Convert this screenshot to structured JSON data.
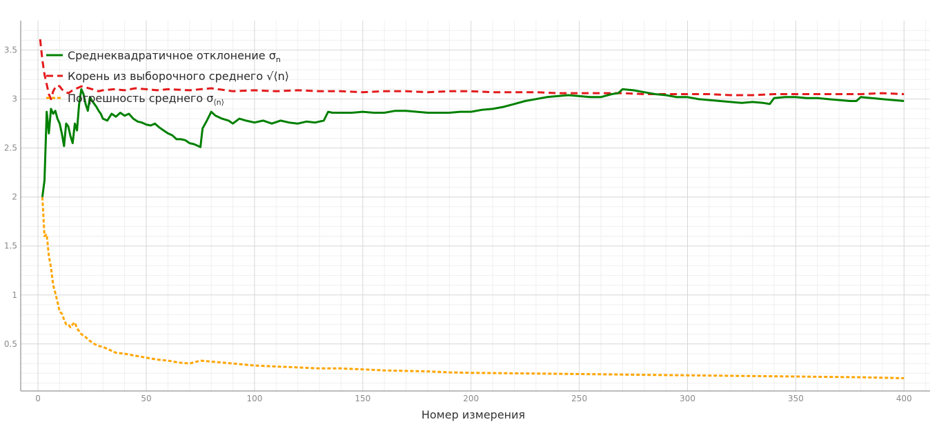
{
  "chart_data": {
    "type": "line",
    "title": "",
    "xlabel": "Номер измерения",
    "ylabel": "",
    "xlim": [
      -8,
      412
    ],
    "ylim": [
      0.02,
      3.8
    ],
    "x_ticks": [
      0,
      50,
      100,
      150,
      200,
      250,
      300,
      350,
      400
    ],
    "x_tick_labels": [
      "0",
      "50",
      "100",
      "150",
      "200",
      "250",
      "300",
      "350",
      "400"
    ],
    "y_ticks": [
      0.5,
      1,
      1.5,
      2,
      2.5,
      3,
      3.5
    ],
    "y_tick_labels": [
      "0.5",
      "1",
      "1.5",
      "2",
      "2.5",
      "3",
      "3.5"
    ],
    "grid": true,
    "legend_position": "top-left",
    "series": [
      {
        "name": "Среднеквадратичное отклонение σ",
        "name_sub": "n",
        "color": "#008000",
        "dash": "solid",
        "x": [
          2,
          3,
          4,
          5,
          6,
          7,
          8,
          9,
          10,
          11,
          12,
          13,
          14,
          15,
          16,
          17,
          18,
          19,
          20,
          21,
          22,
          23,
          24,
          25,
          26,
          27,
          28,
          29,
          30,
          32,
          34,
          36,
          38,
          40,
          42,
          44,
          46,
          48,
          50,
          52,
          54,
          56,
          58,
          60,
          62,
          64,
          66,
          68,
          70,
          72,
          74,
          75,
          76,
          78,
          80,
          82,
          85,
          88,
          90,
          93,
          96,
          100,
          104,
          108,
          112,
          116,
          120,
          124,
          128,
          132,
          134,
          136,
          140,
          145,
          150,
          155,
          160,
          165,
          170,
          175,
          180,
          185,
          190,
          195,
          200,
          205,
          210,
          215,
          220,
          225,
          230,
          235,
          240,
          245,
          250,
          255,
          260,
          265,
          268,
          270,
          275,
          280,
          285,
          290,
          295,
          300,
          305,
          310,
          315,
          320,
          325,
          330,
          335,
          338,
          340,
          345,
          350,
          355,
          360,
          365,
          370,
          375,
          378,
          380,
          385,
          390,
          395,
          400
        ],
        "y": [
          2.0,
          2.17,
          2.87,
          2.65,
          2.9,
          2.85,
          2.88,
          2.8,
          2.75,
          2.65,
          2.52,
          2.75,
          2.72,
          2.62,
          2.55,
          2.75,
          2.68,
          2.95,
          3.1,
          3.05,
          2.95,
          2.88,
          3.02,
          2.98,
          2.95,
          2.92,
          2.88,
          2.85,
          2.8,
          2.78,
          2.85,
          2.82,
          2.86,
          2.83,
          2.85,
          2.8,
          2.77,
          2.76,
          2.74,
          2.73,
          2.75,
          2.71,
          2.68,
          2.65,
          2.63,
          2.59,
          2.59,
          2.58,
          2.55,
          2.54,
          2.52,
          2.51,
          2.7,
          2.78,
          2.87,
          2.83,
          2.8,
          2.78,
          2.75,
          2.8,
          2.78,
          2.76,
          2.78,
          2.75,
          2.78,
          2.76,
          2.75,
          2.77,
          2.76,
          2.78,
          2.87,
          2.86,
          2.86,
          2.86,
          2.87,
          2.86,
          2.86,
          2.88,
          2.88,
          2.87,
          2.86,
          2.86,
          2.86,
          2.87,
          2.87,
          2.89,
          2.9,
          2.92,
          2.95,
          2.98,
          3.0,
          3.02,
          3.03,
          3.04,
          3.03,
          3.02,
          3.02,
          3.05,
          3.06,
          3.1,
          3.09,
          3.07,
          3.05,
          3.04,
          3.02,
          3.02,
          3.0,
          2.99,
          2.98,
          2.97,
          2.96,
          2.97,
          2.96,
          2.95,
          3.01,
          3.02,
          3.02,
          3.01,
          3.01,
          3.0,
          2.99,
          2.98,
          2.98,
          3.02,
          3.01,
          3.0,
          2.99,
          2.98
        ]
      },
      {
        "name": "Корень из выборочного среднего √⟨n⟩",
        "name_sub": "",
        "color": "#e31a1c",
        "dash": "10,6",
        "x": [
          1,
          2,
          3,
          4,
          5,
          6,
          7,
          8,
          9,
          10,
          11,
          12,
          14,
          16,
          18,
          20,
          22,
          25,
          28,
          30,
          35,
          40,
          45,
          50,
          55,
          60,
          70,
          80,
          90,
          100,
          110,
          120,
          130,
          140,
          150,
          160,
          170,
          180,
          190,
          200,
          210,
          220,
          230,
          240,
          250,
          260,
          270,
          280,
          290,
          300,
          310,
          320,
          330,
          340,
          350,
          360,
          370,
          380,
          390,
          400
        ],
        "y": [
          3.61,
          3.4,
          3.25,
          3.15,
          3.05,
          3.0,
          3.08,
          3.12,
          3.14,
          3.13,
          3.1,
          3.08,
          3.06,
          3.09,
          3.11,
          3.13,
          3.12,
          3.1,
          3.08,
          3.09,
          3.1,
          3.09,
          3.11,
          3.1,
          3.09,
          3.1,
          3.09,
          3.11,
          3.08,
          3.09,
          3.08,
          3.09,
          3.08,
          3.08,
          3.07,
          3.08,
          3.08,
          3.07,
          3.08,
          3.08,
          3.07,
          3.07,
          3.07,
          3.06,
          3.06,
          3.06,
          3.06,
          3.05,
          3.05,
          3.05,
          3.05,
          3.04,
          3.04,
          3.05,
          3.05,
          3.05,
          3.05,
          3.05,
          3.06,
          3.05
        ]
      },
      {
        "name": "Погрешность среднего σ",
        "name_sub": "⟨n⟩",
        "color": "#ffa500",
        "dash": "5,3",
        "x": [
          2,
          3,
          4,
          5,
          6,
          7,
          8,
          9,
          10,
          11,
          12,
          13,
          14,
          15,
          16,
          17,
          18,
          19,
          20,
          22,
          24,
          26,
          28,
          30,
          32,
          34,
          36,
          40,
          45,
          50,
          55,
          60,
          65,
          70,
          75,
          80,
          85,
          90,
          95,
          100,
          110,
          120,
          130,
          140,
          150,
          160,
          170,
          180,
          190,
          200,
          220,
          240,
          260,
          280,
          300,
          320,
          340,
          360,
          380,
          400
        ],
        "y": [
          2.0,
          1.6,
          1.62,
          1.4,
          1.28,
          1.1,
          1.02,
          0.93,
          0.83,
          0.81,
          0.75,
          0.7,
          0.7,
          0.67,
          0.7,
          0.72,
          0.66,
          0.63,
          0.6,
          0.57,
          0.53,
          0.5,
          0.48,
          0.47,
          0.45,
          0.43,
          0.41,
          0.4,
          0.38,
          0.36,
          0.34,
          0.33,
          0.31,
          0.3,
          0.33,
          0.32,
          0.31,
          0.3,
          0.29,
          0.28,
          0.27,
          0.26,
          0.25,
          0.25,
          0.24,
          0.23,
          0.225,
          0.22,
          0.21,
          0.205,
          0.2,
          0.195,
          0.19,
          0.185,
          0.18,
          0.175,
          0.17,
          0.165,
          0.16,
          0.15
        ]
      }
    ]
  }
}
